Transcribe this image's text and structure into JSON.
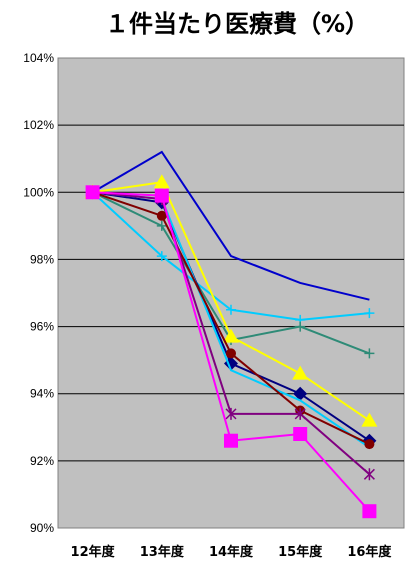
{
  "chart_data": {
    "type": "line",
    "title": "１件当たり医療費（%）",
    "categories": [
      "12年度",
      "13年度",
      "14年度",
      "15年度",
      "16年度"
    ],
    "ylim": [
      90,
      104
    ],
    "yticks": [
      "90%",
      "92%",
      "94%",
      "96%",
      "98%",
      "100%",
      "102%",
      "104%"
    ],
    "ytick_values": [
      90,
      92,
      94,
      96,
      98,
      100,
      102,
      104
    ],
    "grid": true,
    "plot_background": "#c0c0c0",
    "series": [
      {
        "color": "#0000cc",
        "marker": "none",
        "values": [
          100.0,
          101.2,
          98.1,
          97.3,
          96.8
        ]
      },
      {
        "color": "#00ccff",
        "marker": "plus",
        "values": [
          100.0,
          98.1,
          96.5,
          96.2,
          96.4
        ]
      },
      {
        "color": "#2e8b77",
        "marker": "plus",
        "values": [
          100.0,
          99.0,
          95.6,
          96.0,
          95.2
        ]
      },
      {
        "color": "#ffff00",
        "marker": "triangle",
        "values": [
          100.0,
          100.3,
          95.7,
          94.6,
          93.2
        ]
      },
      {
        "color": "#000080",
        "marker": "diamond",
        "values": [
          100.0,
          99.7,
          94.9,
          94.0,
          92.6
        ]
      },
      {
        "color": "#00ccff",
        "marker": "none",
        "values": [
          100.0,
          99.8,
          94.7,
          93.8,
          92.4
        ]
      },
      {
        "color": "#800000",
        "marker": "circle",
        "values": [
          100.0,
          99.3,
          95.2,
          93.5,
          92.5
        ]
      },
      {
        "color": "#800080",
        "marker": "star",
        "values": [
          100.0,
          99.8,
          93.4,
          93.4,
          91.6
        ]
      },
      {
        "color": "#ff00ff",
        "marker": "square",
        "values": [
          100.0,
          99.9,
          92.6,
          92.8,
          90.5
        ]
      }
    ]
  }
}
